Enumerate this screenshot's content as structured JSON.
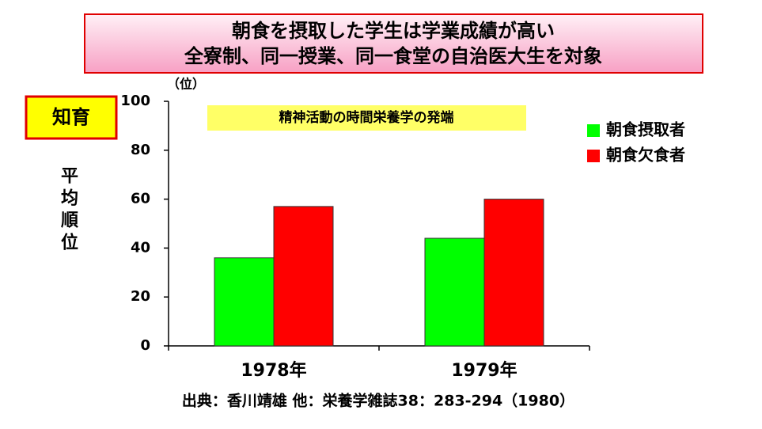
{
  "chart_data": {
    "type": "bar",
    "title": "朝食を摂取した学生は学業成績が高い",
    "subtitle": "全寮制、同一授業、同一食堂の自治医大生を対象",
    "badge": "知育",
    "annotation": "精神活動の時間栄養学の発端",
    "y_unit": "（位）",
    "ylabel": "平均順位",
    "source": "出典：香川靖雄 他：栄養学雑誌38：283-294（1980）",
    "categories": [
      "1978年",
      "1979年"
    ],
    "series": [
      {
        "name": "朝食摂取者",
        "color": "#00ff00",
        "values": [
          36,
          44
        ]
      },
      {
        "name": "朝食欠食者",
        "color": "#ff0000",
        "values": [
          57,
          60
        ]
      }
    ],
    "ylim": [
      0,
      100
    ],
    "yticks": [
      0,
      20,
      40,
      60,
      80,
      100
    ],
    "grid": false,
    "legend": "right"
  }
}
